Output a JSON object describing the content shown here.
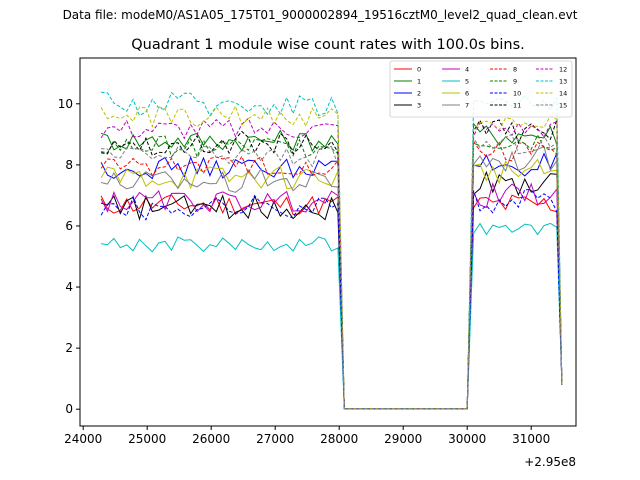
{
  "header": {
    "suptitle": "Data file: modeM0/AS1A05_175T01_9000002894_19516cztM0_level2_quad_clean.evt"
  },
  "chart_data": {
    "type": "line",
    "title": "Quadrant 1 module wise count rates with 100.0s bins.",
    "xlabel": "",
    "ylabel": "",
    "x_offset_label": "+2.95e8",
    "xlim": [
      23950,
      31700
    ],
    "ylim": [
      -0.55,
      11.5
    ],
    "x_ticks": [
      24000,
      25000,
      26000,
      27000,
      28000,
      29000,
      30000,
      31000
    ],
    "x_tick_labels": [
      "24000",
      "25000",
      "26000",
      "27000",
      "28000",
      "29000",
      "30000",
      "31000"
    ],
    "y_ticks": [
      0,
      2,
      4,
      6,
      8,
      10
    ],
    "y_tick_labels": [
      "0",
      "2",
      "4",
      "6",
      "8",
      "10"
    ],
    "grid": false,
    "legend_position": "top-right",
    "segments": {
      "seg1": {
        "start": 24280,
        "step": 100,
        "count": 38
      },
      "gap": {
        "start": 28080,
        "end": 30000,
        "value": 0.02
      },
      "seg2": {
        "start": 30000,
        "step": 100,
        "count": 15
      },
      "last": {
        "x": 31480
      }
    },
    "series": [
      {
        "name": "0",
        "color": "#ff0000",
        "dash": "solid",
        "level1": 6.7,
        "amp1": 0.35,
        "level2": 6.7,
        "amp2": 0.4,
        "last": 0.8
      },
      {
        "name": "1",
        "color": "#008000",
        "dash": "solid",
        "level1": 8.8,
        "amp1": 0.35,
        "level2": 9.0,
        "amp2": 0.4,
        "last": 0.8
      },
      {
        "name": "2",
        "color": "#0000ff",
        "dash": "solid",
        "level1": 7.9,
        "amp1": 0.35,
        "level2": 8.0,
        "amp2": 0.4,
        "last": 0.8
      },
      {
        "name": "3",
        "color": "#000000",
        "dash": "solid",
        "level1": 6.6,
        "amp1": 0.4,
        "level2": 7.4,
        "amp2": 0.4,
        "last": 0.8
      },
      {
        "name": "4",
        "color": "#c000c0",
        "dash": "solid",
        "level1": 6.8,
        "amp1": 0.35,
        "level2": 7.0,
        "amp2": 0.4,
        "last": 0.8
      },
      {
        "name": "5",
        "color": "#00bfbf",
        "dash": "solid",
        "level1": 5.4,
        "amp1": 0.25,
        "level2": 5.9,
        "amp2": 0.2,
        "last": 0.8
      },
      {
        "name": "6",
        "color": "#bfbf00",
        "dash": "solid",
        "level1": 7.6,
        "amp1": 0.4,
        "level2": 7.8,
        "amp2": 0.4,
        "last": 0.8
      },
      {
        "name": "7",
        "color": "#808080",
        "dash": "solid",
        "level1": 7.5,
        "amp1": 0.4,
        "level2": 8.2,
        "amp2": 0.4,
        "last": 0.8
      },
      {
        "name": "8",
        "color": "#ff0000",
        "dash": "dashed",
        "level1": 8.0,
        "amp1": 0.35,
        "level2": 8.5,
        "amp2": 0.4,
        "last": 0.8
      },
      {
        "name": "9",
        "color": "#008000",
        "dash": "dashed",
        "level1": 8.6,
        "amp1": 0.35,
        "level2": 8.8,
        "amp2": 0.4,
        "last": 0.8
      },
      {
        "name": "10",
        "color": "#0000ff",
        "dash": "dashed",
        "level1": 6.6,
        "amp1": 0.4,
        "level2": 6.8,
        "amp2": 0.4,
        "last": 0.8
      },
      {
        "name": "11",
        "color": "#000000",
        "dash": "dashed",
        "level1": 8.7,
        "amp1": 0.4,
        "level2": 9.1,
        "amp2": 0.4,
        "last": 0.8
      },
      {
        "name": "12",
        "color": "#c000c0",
        "dash": "dashed",
        "level1": 9.2,
        "amp1": 0.35,
        "level2": 9.2,
        "amp2": 0.3,
        "last": 0.8
      },
      {
        "name": "13",
        "color": "#00bfbf",
        "dash": "dashed",
        "level1": 10.0,
        "amp1": 0.4,
        "level2": 10.0,
        "amp2": 0.4,
        "last": 0.8
      },
      {
        "name": "14",
        "color": "#bfbf00",
        "dash": "dashed",
        "level1": 9.6,
        "amp1": 0.35,
        "level2": 9.4,
        "amp2": 0.35,
        "last": 0.8
      },
      {
        "name": "15",
        "color": "#808080",
        "dash": "dashed",
        "level1": 8.3,
        "amp1": 0.35,
        "level2": 8.7,
        "amp2": 0.35,
        "last": 0.8
      }
    ]
  }
}
